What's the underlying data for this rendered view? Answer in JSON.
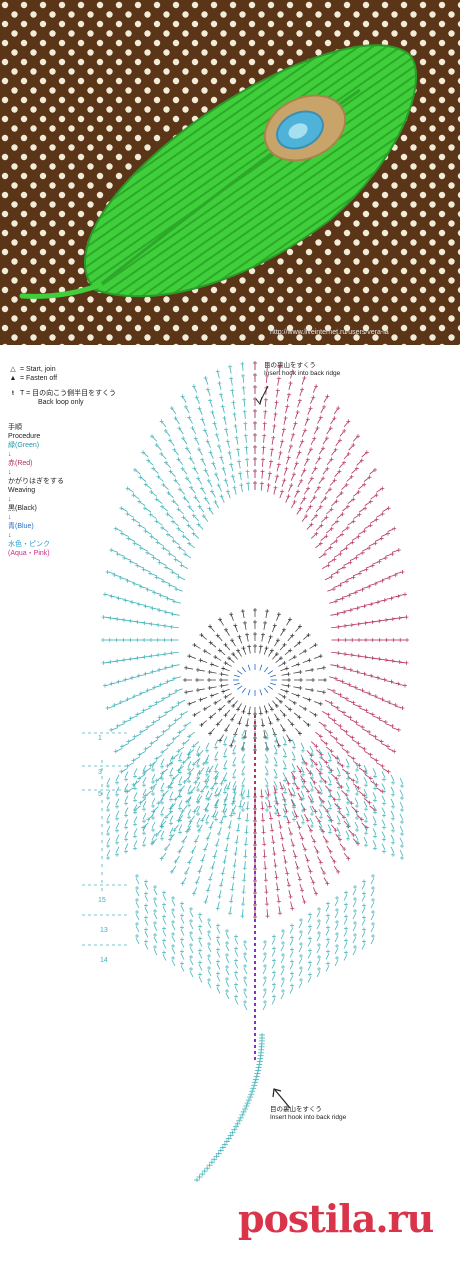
{
  "photo": {
    "credit": "http://www.liveinternet.ru/users/vera-la",
    "background_color": "#5a3518",
    "dot_color": "#f2ecd8",
    "feather_color": "#3fcf3a",
    "eye_outer_color": "#c9a46a",
    "eye_inner_color": "#4fb3d9"
  },
  "legend": {
    "start_join": "= Start, join",
    "fasten_off": "= Fasten off",
    "back_loop_jp": "T = 目の向こう側半目をすくう",
    "back_loop_en": "Back loop only"
  },
  "procedure": {
    "title_jp": "手順",
    "title_en": "Procedure",
    "steps": [
      "緑(Green)",
      "赤(Red)",
      "かがりはぎをする",
      "Weaving",
      "黒(Black)",
      "青(Blue)",
      "水色・ピンク",
      "(Aqua・Pink)"
    ],
    "arrow": "↓"
  },
  "notes": {
    "top_jp": "目の裏山をすくう",
    "top_en": "Insert hook into back ridge",
    "bottom_jp": "目の裏山をすくう",
    "bottom_en": "Insert hook into back ridge"
  },
  "row_labels": [
    "1",
    "3",
    "5",
    "15",
    "13",
    "14"
  ],
  "colors": {
    "teal": "#3fb3b8",
    "magenta": "#b5335f",
    "black": "#333333",
    "blue": "#2166c4",
    "purple": "#8a2fc2"
  },
  "watermark": "postila.ru"
}
